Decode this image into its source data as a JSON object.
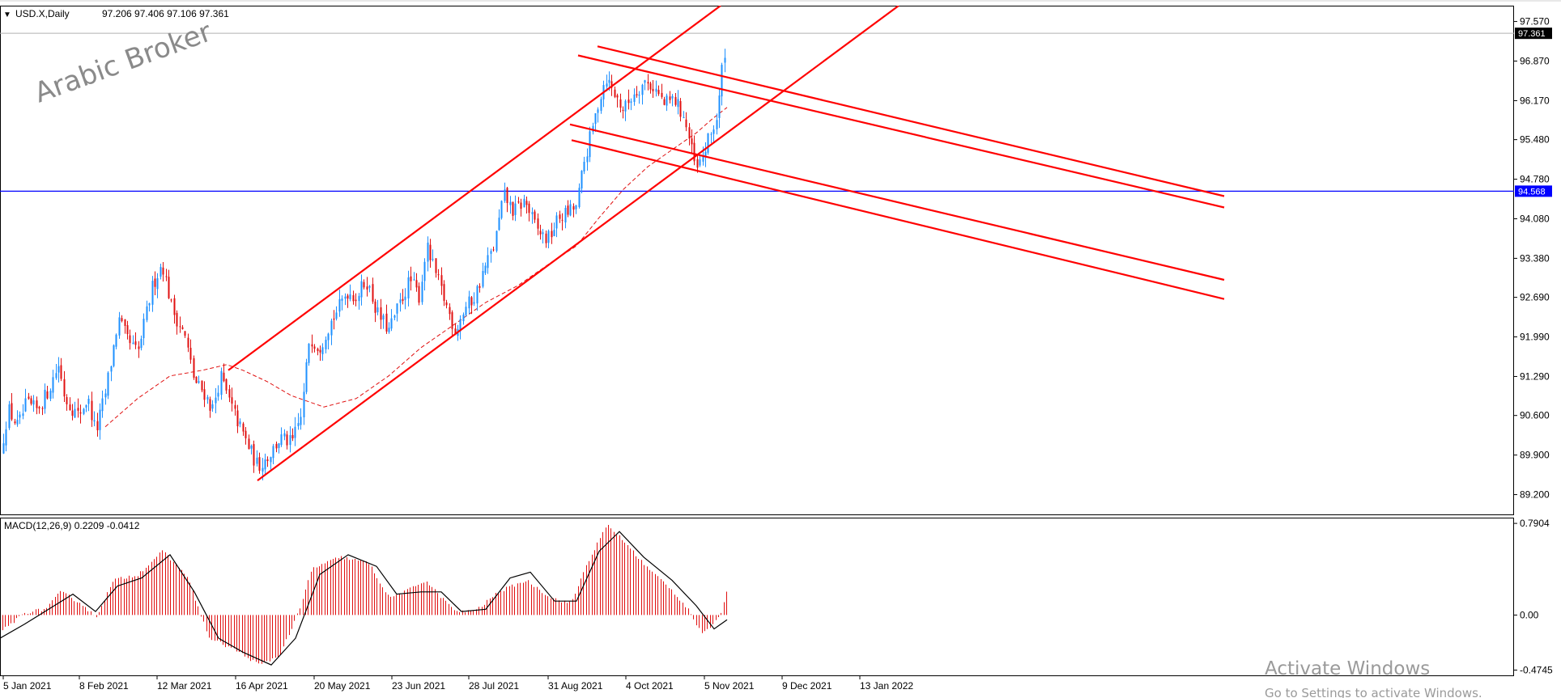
{
  "header": {
    "symbol": "USD.X,Daily",
    "ohlc": "97.206 97.406 97.106 97.361"
  },
  "watermark": "Arabic Broker",
  "macd_header": "MACD(12,26,9) 0.2209 -0.0412",
  "activate": {
    "title": "Activate Windows",
    "subtitle": "Go to Settings to activate Windows."
  },
  "colors": {
    "bull": "#1e90ff",
    "bear": "#e01010",
    "trendline": "#ff0000",
    "hline": "#0000ff",
    "ma": "#e01010",
    "macd_hist": "#e01010",
    "signal": "#000000"
  },
  "chart_data": [
    {
      "type": "candlestick",
      "name": "USD.X Daily",
      "ylim": [
        88.85,
        97.85
      ],
      "yticks": [
        "97.570",
        "96.870",
        "96.170",
        "95.480",
        "94.780",
        "94.080",
        "93.380",
        "92.690",
        "91.990",
        "91.290",
        "90.600",
        "89.900",
        "89.200"
      ],
      "ytick_values": [
        97.57,
        96.87,
        96.17,
        95.48,
        94.78,
        94.08,
        93.38,
        92.69,
        91.99,
        91.29,
        90.6,
        89.9,
        89.2
      ],
      "xticks": [
        "5 Jan 2021",
        "8 Feb 2021",
        "12 Mar 2021",
        "16 Apr 2021",
        "20 May 2021",
        "23 Jun 2021",
        "28 Jul 2021",
        "31 Aug 2021",
        "4 Oct 2021",
        "5 Nov 2021",
        "9 Dec 2021",
        "13 Jan 2022"
      ],
      "last_price": "97.361",
      "hline_price": "94.568",
      "hline_value": 94.568,
      "price_path": [
        [
          0,
          89.9
        ],
        [
          10,
          90.7
        ],
        [
          22,
          90.4
        ],
        [
          32,
          90.8
        ],
        [
          45,
          90.7
        ],
        [
          58,
          91.0
        ],
        [
          72,
          91.5
        ],
        [
          80,
          90.9
        ],
        [
          96,
          90.6
        ],
        [
          108,
          90.9
        ],
        [
          118,
          90.3
        ],
        [
          130,
          91.0
        ],
        [
          146,
          92.3
        ],
        [
          158,
          91.9
        ],
        [
          170,
          91.7
        ],
        [
          188,
          92.9
        ],
        [
          200,
          93.3
        ],
        [
          212,
          92.5
        ],
        [
          228,
          92.0
        ],
        [
          240,
          91.2
        ],
        [
          252,
          91.0
        ],
        [
          262,
          90.7
        ],
        [
          272,
          91.3
        ],
        [
          284,
          90.8
        ],
        [
          296,
          90.4
        ],
        [
          308,
          90.0
        ],
        [
          318,
          89.7
        ],
        [
          332,
          89.9
        ],
        [
          346,
          90.2
        ],
        [
          360,
          90.1
        ],
        [
          372,
          90.6
        ],
        [
          382,
          92.0
        ],
        [
          394,
          91.8
        ],
        [
          406,
          92.2
        ],
        [
          418,
          92.5
        ],
        [
          428,
          92.8
        ],
        [
          440,
          92.7
        ],
        [
          452,
          93.0
        ],
        [
          466,
          92.4
        ],
        [
          480,
          92.1
        ],
        [
          494,
          92.6
        ],
        [
          506,
          93.0
        ],
        [
          518,
          92.7
        ],
        [
          526,
          93.6
        ],
        [
          540,
          93.0
        ],
        [
          552,
          92.5
        ],
        [
          562,
          92.1
        ],
        [
          574,
          92.5
        ],
        [
          586,
          92.7
        ],
        [
          598,
          93.2
        ],
        [
          610,
          93.6
        ],
        [
          622,
          94.5
        ],
        [
          634,
          94.2
        ],
        [
          648,
          94.4
        ],
        [
          662,
          93.9
        ],
        [
          676,
          93.7
        ],
        [
          690,
          94.1
        ],
        [
          702,
          94.2
        ],
        [
          712,
          94.3
        ],
        [
          720,
          95.0
        ],
        [
          730,
          95.6
        ],
        [
          740,
          96.2
        ],
        [
          748,
          96.6
        ],
        [
          758,
          96.3
        ],
        [
          770,
          96.0
        ],
        [
          782,
          96.3
        ],
        [
          796,
          96.5
        ],
        [
          808,
          96.4
        ],
        [
          820,
          96.1
        ],
        [
          832,
          96.2
        ],
        [
          844,
          95.9
        ],
        [
          852,
          95.4
        ],
        [
          860,
          94.9
        ],
        [
          868,
          95.2
        ],
        [
          878,
          95.6
        ],
        [
          886,
          95.9
        ],
        [
          892,
          96.8
        ],
        [
          898,
          97.36
        ]
      ],
      "ma_path": [
        [
          130,
          90.4
        ],
        [
          170,
          90.9
        ],
        [
          210,
          91.3
        ],
        [
          250,
          91.4
        ],
        [
          280,
          91.5
        ],
        [
          300,
          91.4
        ],
        [
          330,
          91.2
        ],
        [
          360,
          90.95
        ],
        [
          400,
          90.75
        ],
        [
          440,
          90.9
        ],
        [
          480,
          91.3
        ],
        [
          520,
          91.8
        ],
        [
          560,
          92.2
        ],
        [
          600,
          92.6
        ],
        [
          640,
          92.9
        ],
        [
          680,
          93.3
        ],
        [
          712,
          93.6
        ],
        [
          740,
          94.1
        ],
        [
          770,
          94.6
        ],
        [
          800,
          95.0
        ],
        [
          830,
          95.3
        ],
        [
          860,
          95.6
        ],
        [
          880,
          95.85
        ],
        [
          898,
          96.05
        ]
      ],
      "trendlines": [
        {
          "p1": [
            282,
            91.4
          ],
          "p2": [
            890,
            97.85
          ]
        },
        {
          "p1": [
            318,
            89.45
          ],
          "p2": [
            1110,
            97.85
          ]
        },
        {
          "p1": [
            714,
            96.97
          ],
          "p2": [
            1512,
            94.28
          ]
        },
        {
          "p1": [
            738,
            97.13
          ],
          "p2": [
            1512,
            94.48
          ]
        },
        {
          "p1": [
            704,
            95.75
          ],
          "p2": [
            1512,
            93.0
          ]
        },
        {
          "p1": [
            706,
            95.47
          ],
          "p2": [
            1512,
            92.66
          ]
        }
      ]
    },
    {
      "type": "macd",
      "name": "MACD(12,26,9)",
      "values_header": "0.2209 -0.0412",
      "ylim": [
        -0.52,
        0.84
      ],
      "yticks": [
        "0.7904",
        "0.00",
        "-0.4745"
      ],
      "ytick_values": [
        0.7904,
        0.0,
        -0.4745
      ],
      "hist_path": [
        [
          0,
          -0.15
        ],
        [
          30,
          0.02
        ],
        [
          55,
          0.05
        ],
        [
          75,
          0.2
        ],
        [
          100,
          0.1
        ],
        [
          118,
          -0.02
        ],
        [
          140,
          0.3
        ],
        [
          170,
          0.35
        ],
        [
          200,
          0.55
        ],
        [
          230,
          0.35
        ],
        [
          258,
          -0.2
        ],
        [
          290,
          -0.3
        ],
        [
          320,
          -0.43
        ],
        [
          345,
          -0.35
        ],
        [
          370,
          0.05
        ],
        [
          385,
          0.4
        ],
        [
          420,
          0.5
        ],
        [
          455,
          0.45
        ],
        [
          480,
          0.15
        ],
        [
          500,
          0.2
        ],
        [
          525,
          0.3
        ],
        [
          545,
          0.15
        ],
        [
          565,
          0.02
        ],
        [
          590,
          0.05
        ],
        [
          615,
          0.2
        ],
        [
          650,
          0.3
        ],
        [
          680,
          0.15
        ],
        [
          705,
          0.1
        ],
        [
          725,
          0.45
        ],
        [
          750,
          0.78
        ],
        [
          775,
          0.6
        ],
        [
          800,
          0.4
        ],
        [
          825,
          0.25
        ],
        [
          850,
          0.05
        ],
        [
          865,
          -0.15
        ],
        [
          878,
          -0.12
        ],
        [
          892,
          0.05
        ],
        [
          898,
          0.22
        ]
      ],
      "signal_path": [
        [
          0,
          -0.2
        ],
        [
          30,
          -0.08
        ],
        [
          60,
          0.05
        ],
        [
          90,
          0.18
        ],
        [
          118,
          0.03
        ],
        [
          145,
          0.25
        ],
        [
          175,
          0.32
        ],
        [
          210,
          0.52
        ],
        [
          240,
          0.2
        ],
        [
          270,
          -0.2
        ],
        [
          300,
          -0.32
        ],
        [
          335,
          -0.43
        ],
        [
          365,
          -0.2
        ],
        [
          395,
          0.35
        ],
        [
          430,
          0.52
        ],
        [
          465,
          0.42
        ],
        [
          490,
          0.18
        ],
        [
          520,
          0.2
        ],
        [
          545,
          0.2
        ],
        [
          570,
          0.03
        ],
        [
          600,
          0.05
        ],
        [
          630,
          0.32
        ],
        [
          655,
          0.37
        ],
        [
          685,
          0.12
        ],
        [
          712,
          0.12
        ],
        [
          740,
          0.55
        ],
        [
          765,
          0.72
        ],
        [
          795,
          0.5
        ],
        [
          830,
          0.3
        ],
        [
          860,
          0.08
        ],
        [
          882,
          -0.12
        ],
        [
          898,
          -0.04
        ]
      ]
    }
  ]
}
